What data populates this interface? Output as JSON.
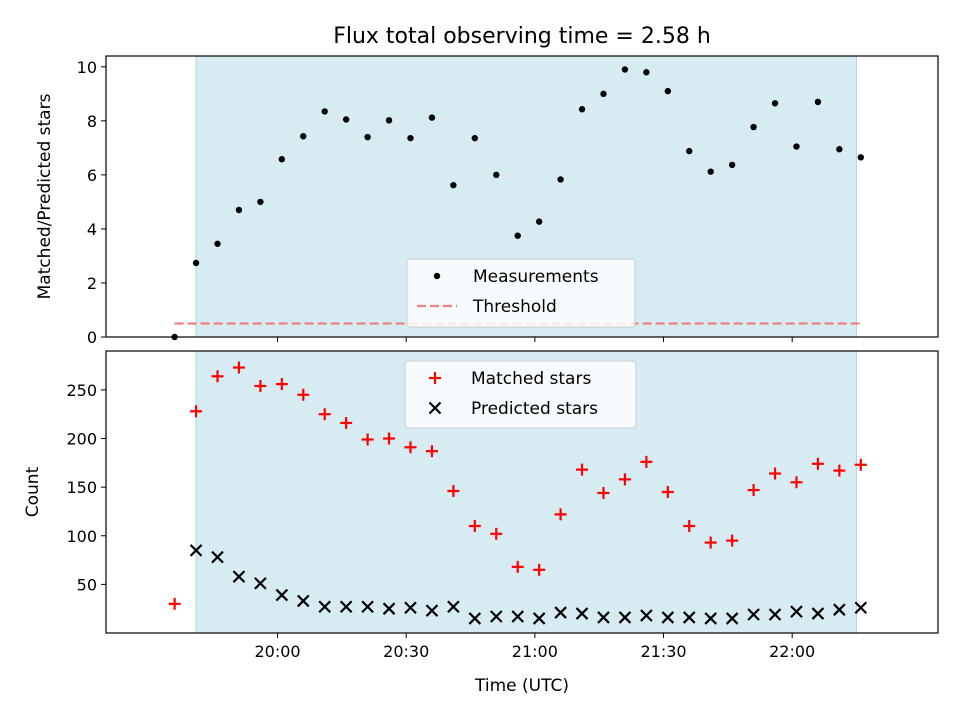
{
  "chart_data": [
    {
      "type": "scatter",
      "title": "Flux total observing time = 2.58 h",
      "xlabel": "",
      "ylabel": "Matched/Predicted stars",
      "ylim": [
        0,
        10.4
      ],
      "yticks": [
        0,
        2,
        4,
        6,
        8,
        10
      ],
      "observing_window": [
        "19:41",
        "22:15"
      ],
      "legend_position": "bottom-center",
      "series": [
        {
          "name": "Measurements",
          "marker": "dot",
          "color": "#000000",
          "x": [
            "19:36",
            "19:41",
            "19:46",
            "19:51",
            "19:56",
            "20:01",
            "20:06",
            "20:11",
            "20:16",
            "20:21",
            "20:26",
            "20:31",
            "20:36",
            "20:41",
            "20:46",
            "20:51",
            "20:56",
            "21:01",
            "21:06",
            "21:11",
            "21:16",
            "21:21",
            "21:26",
            "21:31",
            "21:36",
            "21:41",
            "21:46",
            "21:51",
            "21:56",
            "22:01",
            "22:06",
            "22:11",
            "22:16"
          ],
          "y": [
            0.0,
            2.74,
            3.45,
            4.7,
            5.0,
            6.58,
            7.43,
            8.35,
            8.05,
            7.4,
            8.02,
            7.36,
            8.12,
            5.62,
            7.36,
            6.0,
            3.75,
            4.27,
            5.83,
            8.43,
            9.0,
            9.9,
            9.8,
            9.1,
            6.88,
            6.12,
            6.37,
            7.77,
            8.65,
            7.05,
            8.7,
            6.95,
            6.65
          ]
        },
        {
          "name": "Threshold",
          "style": "dashed",
          "color": "#f08080",
          "x": [
            "19:36",
            "22:16"
          ],
          "y": [
            0.5,
            0.5
          ]
        }
      ]
    },
    {
      "type": "scatter",
      "xlabel": "Time (UTC)",
      "ylabel": "Count",
      "ylim": [
        0,
        290
      ],
      "yticks": [
        50,
        100,
        150,
        200,
        250
      ],
      "xticks": [
        "20:00",
        "20:30",
        "21:00",
        "21:30",
        "22:00"
      ],
      "observing_window": [
        "19:41",
        "22:15"
      ],
      "legend_position": "top-center",
      "series": [
        {
          "name": "Matched stars",
          "marker": "plus",
          "color": "#ff0000",
          "x": [
            "19:36",
            "19:41",
            "19:46",
            "19:51",
            "19:56",
            "20:01",
            "20:06",
            "20:11",
            "20:16",
            "20:21",
            "20:26",
            "20:31",
            "20:36",
            "20:41",
            "20:46",
            "20:51",
            "20:56",
            "21:01",
            "21:06",
            "21:11",
            "21:16",
            "21:21",
            "21:26",
            "21:31",
            "21:36",
            "21:41",
            "21:46",
            "21:51",
            "21:56",
            "22:01",
            "22:06",
            "22:11",
            "22:16"
          ],
          "y": [
            30,
            228,
            264,
            273,
            254,
            256,
            245,
            225,
            216,
            199,
            200,
            191,
            187,
            146,
            110,
            102,
            68,
            65,
            122,
            168,
            144,
            158,
            176,
            145,
            110,
            93,
            95,
            147,
            164,
            155,
            174,
            167,
            173
          ]
        },
        {
          "name": "Predicted stars",
          "marker": "x",
          "color": "#000000",
          "x": [
            "19:41",
            "19:46",
            "19:51",
            "19:56",
            "20:01",
            "20:06",
            "20:11",
            "20:16",
            "20:21",
            "20:26",
            "20:31",
            "20:36",
            "20:41",
            "20:46",
            "20:51",
            "20:56",
            "21:01",
            "21:06",
            "21:11",
            "21:16",
            "21:21",
            "21:26",
            "21:31",
            "21:36",
            "21:41",
            "21:46",
            "21:51",
            "21:56",
            "22:01",
            "22:06",
            "22:11",
            "22:16"
          ],
          "y": [
            85,
            78,
            58,
            51,
            39,
            33,
            27,
            27,
            27,
            25,
            26,
            23,
            27,
            15,
            17,
            17,
            15,
            21,
            20,
            16,
            16,
            18,
            16,
            16,
            15,
            15,
            19,
            19,
            22,
            20,
            24,
            26
          ]
        }
      ]
    }
  ]
}
